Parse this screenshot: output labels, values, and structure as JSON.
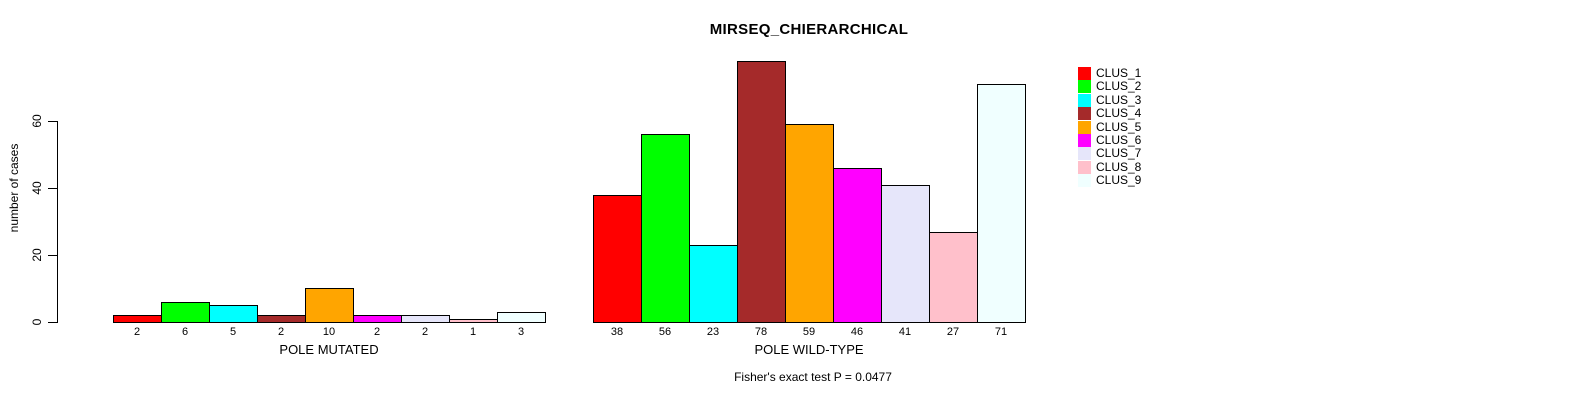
{
  "chart_data": {
    "type": "bar",
    "title": "MIRSEQ_CHIERARCHICAL",
    "ylabel": "number of cases",
    "xlabel": "",
    "yticks": [
      0,
      20,
      40,
      60
    ],
    "ylim": [
      0,
      78
    ],
    "grid": false,
    "legend_position": "right",
    "clusters": [
      "CLUS_1",
      "CLUS_2",
      "CLUS_3",
      "CLUS_4",
      "CLUS_5",
      "CLUS_6",
      "CLUS_7",
      "CLUS_8",
      "CLUS_9"
    ],
    "cluster_colors": [
      "#ff0000",
      "#00ff00",
      "#00ffff",
      "#a52a2a",
      "#ffa500",
      "#ff00ff",
      "#e6e6fa",
      "#ffc0cb",
      "#f0ffff"
    ],
    "groups": [
      {
        "label": "POLE MUTATED",
        "values": [
          2,
          6,
          5,
          2,
          10,
          2,
          2,
          1,
          3
        ]
      },
      {
        "label": "POLE WILD-TYPE",
        "values": [
          38,
          56,
          23,
          78,
          59,
          46,
          41,
          27,
          71
        ]
      }
    ],
    "bar_value_labels_shown": true,
    "annotation": "Fisher's exact test P = 0.0477"
  },
  "colors": {
    "background": "#ffffff",
    "axis": "#000000",
    "text": "#000000",
    "bar_border": "#000000"
  }
}
